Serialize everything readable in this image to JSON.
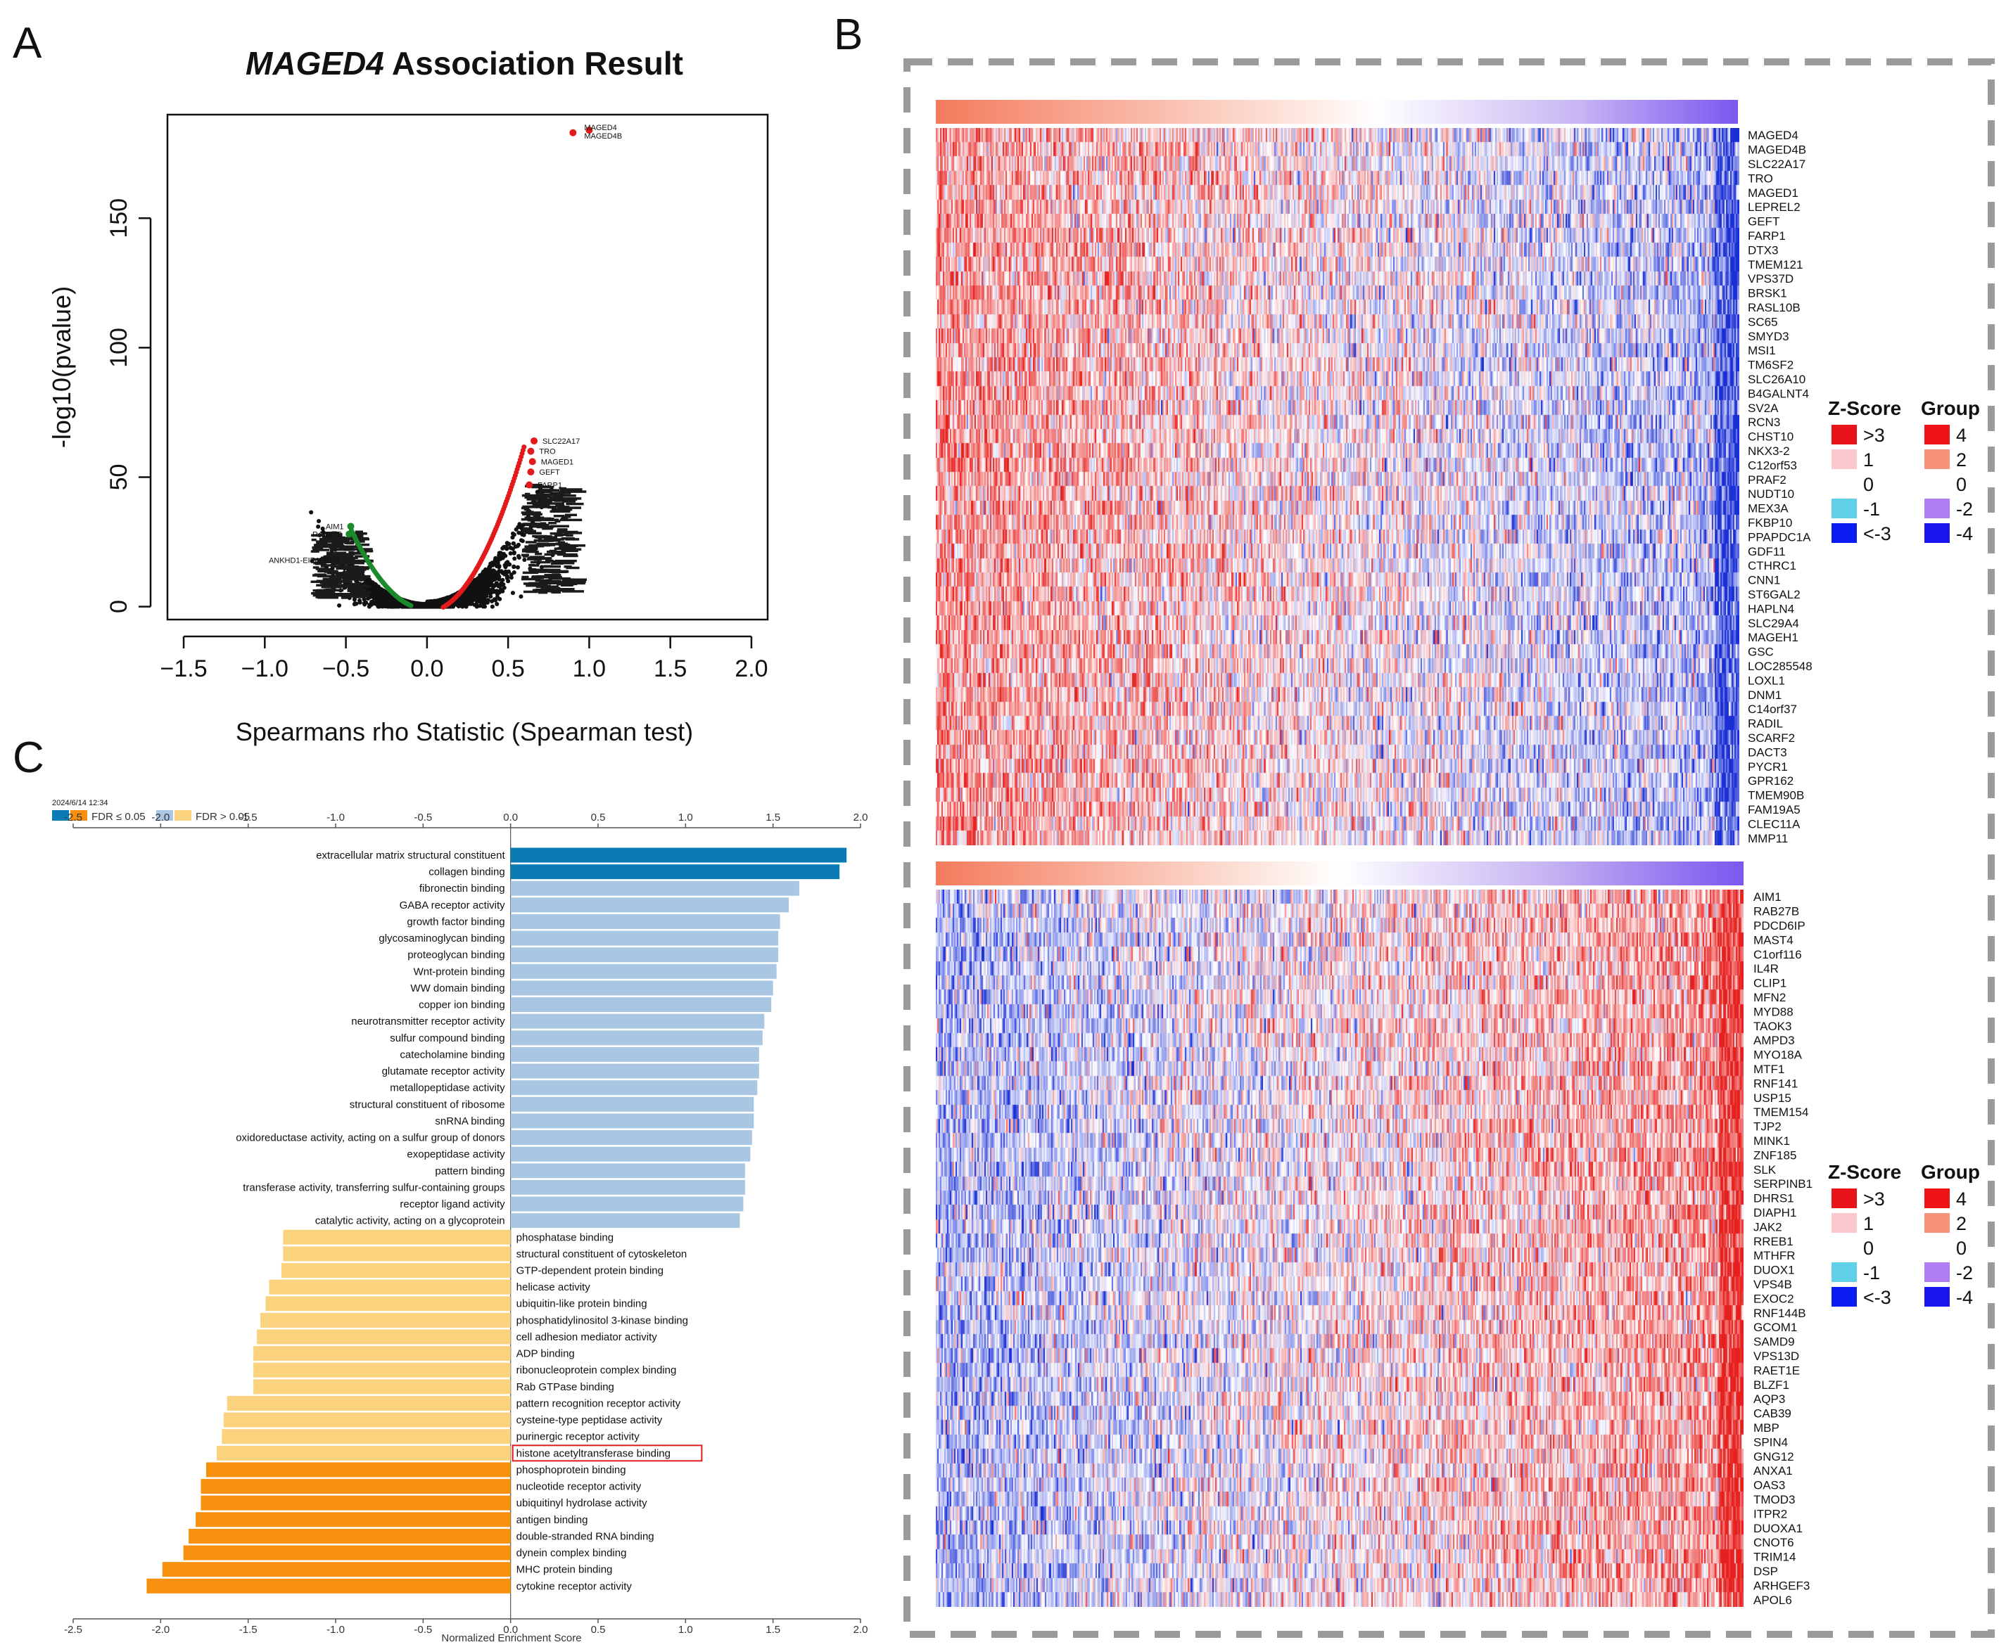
{
  "panels": {
    "a": "A",
    "b": "B",
    "c": "C"
  },
  "colors": {
    "red_point": "#e31a1c",
    "green_point": "#1a8a2a",
    "black_point": "#111111",
    "dark_blue": "#0b7bb5",
    "light_blue": "#a9c6e2",
    "dark_orange": "#f7900e",
    "light_orange": "#fbd27d",
    "heat_low": "#1a2fd6",
    "heat_mid": "#ffffff",
    "heat_high": "#e6201e"
  },
  "chart_data": [
    {
      "id": "volcano",
      "type": "scatter",
      "title_gene": "MAGED4",
      "title_rest": " Association Result",
      "xlabel": "Spearmans rho Statistic (Spearman test)",
      "ylabel": "-log10(pvalue)",
      "xlim": [
        -1.6,
        2.1
      ],
      "ylim": [
        -5,
        190
      ],
      "xticks": [
        -1.5,
        -1.0,
        -0.5,
        0.0,
        0.5,
        1.0,
        1.5,
        2.0
      ],
      "xtick_labels": [
        "−1.5",
        "−1.0",
        "−0.5",
        "0.0",
        "0.5",
        "1.0",
        "1.5",
        "2.0"
      ],
      "yticks": [
        0,
        50,
        100,
        150
      ],
      "ytick_labels": [
        "0",
        "50",
        "100",
        "150"
      ],
      "highlight_points": [
        {
          "x": 0.9,
          "y": 183,
          "group": "pos",
          "label": "MAGED4"
        },
        {
          "x": 1.0,
          "y": 184,
          "group": "pos",
          "label": "MAGED4B"
        }
      ],
      "positive_labels": [
        {
          "x": 0.66,
          "y": 64,
          "label": "SLC22A17"
        },
        {
          "x": 0.64,
          "y": 60,
          "label": "TRO"
        },
        {
          "x": 0.65,
          "y": 56,
          "label": "MAGED1"
        },
        {
          "x": 0.64,
          "y": 52,
          "label": "GEFT"
        },
        {
          "x": 0.63,
          "y": 47,
          "label": "FARP1"
        }
      ],
      "negative_labels": [
        {
          "x": -0.47,
          "y": 31,
          "label": "AIM1"
        },
        {
          "x": -0.48,
          "y": 28,
          "label": "RAB27B"
        },
        {
          "x": -0.5,
          "y": 18,
          "label": "ANKHD1-EIF4EBP3"
        }
      ]
    },
    {
      "id": "heatmap_positive",
      "type": "heatmap",
      "legend_zscore_title": "Z-Score",
      "legend_group_title": "Group",
      "zscore_labels": [
        ">3",
        "1",
        "0",
        "-1",
        "<-3"
      ],
      "group_labels": [
        "4",
        "2",
        "0",
        "-2",
        "-4"
      ],
      "genes": [
        "MAGED4",
        "MAGED4B",
        "SLC22A17",
        "TRO",
        "MAGED1",
        "LEPREL2",
        "GEFT",
        "FARP1",
        "DTX3",
        "TMEM121",
        "VPS37D",
        "BRSK1",
        "RASL10B",
        "SC65",
        "SMYD3",
        "MSI1",
        "TM6SF2",
        "SLC26A10",
        "B4GALNT4",
        "SV2A",
        "RCN3",
        "CHST10",
        "NKX3-2",
        "C12orf53",
        "PRAF2",
        "NUDT10",
        "MEX3A",
        "FKBP10",
        "PPAPDC1A",
        "GDF11",
        "CTHRC1",
        "CNN1",
        "ST6GAL2",
        "HAPLN4",
        "SLC29A4",
        "MAGEH1",
        "GSC",
        "LOC285548",
        "LOXL1",
        "DNM1",
        "C14orf37",
        "RADIL",
        "SCARF2",
        "DACT3",
        "PYCR1",
        "GPR162",
        "TMEM90B",
        "FAM19A5",
        "CLEC11A",
        "MMP11"
      ]
    },
    {
      "id": "heatmap_negative",
      "type": "heatmap",
      "legend_zscore_title": "Z-Score",
      "legend_group_title": "Group",
      "zscore_labels": [
        ">3",
        "1",
        "0",
        "-1",
        "<-3"
      ],
      "group_labels": [
        "4",
        "2",
        "0",
        "-2",
        "-4"
      ],
      "genes": [
        "AIM1",
        "RAB27B",
        "PDCD6IP",
        "MAST4",
        "C1orf116",
        "IL4R",
        "CLIP1",
        "MFN2",
        "MYD88",
        "TAOK3",
        "AMPD3",
        "MYO18A",
        "MTF1",
        "RNF141",
        "USP15",
        "TMEM154",
        "TJP2",
        "MINK1",
        "ZNF185",
        "SLK",
        "SERPINB1",
        "DHRS1",
        "DIAPH1",
        "JAK2",
        "RREB1",
        "MTHFR",
        "DUOX1",
        "VPS4B",
        "EXOC2",
        "RNF144B",
        "GCOM1",
        "SAMD9",
        "VPS13D",
        "RAET1E",
        "BLZF1",
        "AQP3",
        "CAB39",
        "MBP",
        "SPIN4",
        "GNG12",
        "ANXA1",
        "OAS3",
        "TMOD3",
        "ITPR2",
        "DUOXA1",
        "CNOT6",
        "TRIM14",
        "DSP",
        "ARHGEF3",
        "APOL6"
      ]
    },
    {
      "id": "gsea_bar",
      "type": "bar",
      "orientation": "horizontal",
      "xlabel": "Normalized Enrichment Score",
      "xlim": [
        -2.5,
        2.0
      ],
      "xticks": [
        -2.5,
        -2.0,
        -1.5,
        -1.0,
        -0.5,
        0.0,
        0.5,
        1.0,
        1.5,
        2.0
      ],
      "xtick_labels": [
        "-2.5",
        "-2.0",
        "-1.5",
        "-1.0",
        "-0.5",
        "0.0",
        "0.5",
        "1.0",
        "1.5",
        "2.0"
      ],
      "stamp": "2024/6/14 12:34",
      "legend": [
        {
          "label": "FDR ≤ 0.05",
          "colors": [
            "#0b7bb5",
            "#f7900e"
          ]
        },
        {
          "label": "FDR > 0.05",
          "colors": [
            "#a9c6e2",
            "#fbd27d"
          ]
        }
      ],
      "highlighted_category": "histone acetyltransferase binding",
      "categories": [
        "extracellular matrix structural constituent",
        "collagen binding",
        "fibronectin binding",
        "GABA receptor activity",
        "growth factor binding",
        "glycosaminoglycan binding",
        "proteoglycan binding",
        "Wnt-protein binding",
        "WW domain binding",
        "copper ion binding",
        "neurotransmitter receptor activity",
        "sulfur compound binding",
        "catecholamine binding",
        "glutamate receptor activity",
        "metallopeptidase activity",
        "structural constituent of ribosome",
        "snRNA binding",
        "oxidoreductase activity, acting on a sulfur group of donors",
        "exopeptidase activity",
        "pattern binding",
        "transferase activity, transferring sulfur-containing groups",
        "receptor ligand activity",
        "catalytic activity, acting on a glycoprotein",
        "phosphatase binding",
        "structural constituent of cytoskeleton",
        "GTP-dependent protein binding",
        "helicase activity",
        "ubiquitin-like protein binding",
        "phosphatidylinositol 3-kinase binding",
        "cell adhesion mediator activity",
        "ADP binding",
        "ribonucleoprotein complex binding",
        "Rab GTPase binding",
        "pattern recognition receptor activity",
        "cysteine-type peptidase activity",
        "purinergic receptor activity",
        "histone acetyltransferase binding",
        "phosphoprotein binding",
        "nucleotide receptor activity",
        "ubiquitinyl hydrolase activity",
        "antigen binding",
        "double-stranded RNA binding",
        "dynein complex binding",
        "MHC protein binding",
        "cytokine receptor activity"
      ],
      "values": [
        1.92,
        1.88,
        1.65,
        1.59,
        1.54,
        1.53,
        1.53,
        1.52,
        1.5,
        1.49,
        1.45,
        1.44,
        1.42,
        1.42,
        1.41,
        1.39,
        1.39,
        1.38,
        1.37,
        1.34,
        1.34,
        1.33,
        1.31,
        -1.3,
        -1.3,
        -1.31,
        -1.38,
        -1.4,
        -1.43,
        -1.45,
        -1.47,
        -1.47,
        -1.47,
        -1.62,
        -1.64,
        -1.65,
        -1.68,
        -1.74,
        -1.77,
        -1.77,
        -1.8,
        -1.84,
        -1.87,
        -1.99,
        -2.08
      ],
      "significant": [
        true,
        true,
        false,
        false,
        false,
        false,
        false,
        false,
        false,
        false,
        false,
        false,
        false,
        false,
        false,
        false,
        false,
        false,
        false,
        false,
        false,
        false,
        false,
        false,
        false,
        false,
        false,
        false,
        false,
        false,
        false,
        false,
        false,
        false,
        false,
        false,
        false,
        true,
        true,
        true,
        true,
        true,
        true,
        true,
        true
      ]
    }
  ]
}
